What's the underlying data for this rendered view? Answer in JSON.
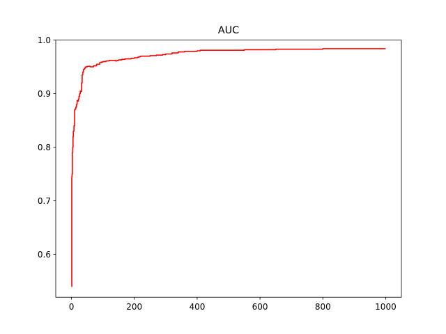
{
  "chart_data": {
    "type": "line",
    "title": "AUC",
    "xlabel": "",
    "ylabel": "",
    "xlim": [
      -50,
      1050
    ],
    "ylim": [
      0.52,
      1.0
    ],
    "xticks": [
      0,
      200,
      400,
      600,
      800,
      1000
    ],
    "xtick_labels": [
      "0",
      "200",
      "400",
      "600",
      "800",
      "1000"
    ],
    "yticks": [
      0.6,
      0.7,
      0.8,
      0.9,
      1.0
    ],
    "ytick_labels": [
      "0.6",
      "0.7",
      "0.8",
      "0.9",
      "1.0"
    ],
    "grid": false,
    "legend": "none",
    "series": [
      {
        "color": "#ff0000",
        "step": true,
        "x": [
          0,
          1,
          2,
          3,
          4,
          5,
          6,
          8,
          10,
          12,
          14,
          16,
          18,
          20,
          22,
          24,
          26,
          28,
          30,
          32,
          34,
          36,
          38,
          40,
          42,
          45,
          50,
          55,
          60,
          70,
          80,
          90,
          95,
          100,
          110,
          120,
          130,
          140,
          145,
          150,
          160,
          170,
          180,
          190,
          200,
          210,
          215,
          220,
          230,
          240,
          250,
          260,
          270,
          280,
          290,
          300,
          320,
          340,
          360,
          380,
          400,
          410,
          450,
          500,
          550,
          600,
          650,
          700,
          750,
          800,
          850,
          900,
          950,
          1000
        ],
        "y": [
          0.54,
          0.745,
          0.75,
          0.79,
          0.8,
          0.82,
          0.83,
          0.84,
          0.87,
          0.872,
          0.875,
          0.88,
          0.887,
          0.886,
          0.89,
          0.895,
          0.9,
          0.905,
          0.904,
          0.92,
          0.935,
          0.94,
          0.945,
          0.946,
          0.948,
          0.95,
          0.951,
          0.951,
          0.95,
          0.952,
          0.955,
          0.958,
          0.959,
          0.96,
          0.961,
          0.962,
          0.962,
          0.961,
          0.962,
          0.963,
          0.964,
          0.965,
          0.965,
          0.966,
          0.967,
          0.968,
          0.969,
          0.97,
          0.97,
          0.97,
          0.971,
          0.971,
          0.972,
          0.972,
          0.973,
          0.974,
          0.976,
          0.978,
          0.979,
          0.979,
          0.98,
          0.981,
          0.981,
          0.981,
          0.982,
          0.982,
          0.983,
          0.983,
          0.983,
          0.984,
          0.984,
          0.984,
          0.984,
          0.984
        ]
      }
    ]
  }
}
